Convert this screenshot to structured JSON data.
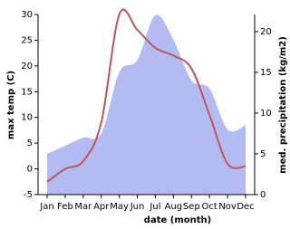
{
  "chart_data": {
    "type": "line",
    "xlabel": "date (month)",
    "ylabel": "max temp (C)",
    "y2label": "med. precipitation (kg/m2)",
    "categories": [
      "Jan",
      "Feb",
      "Mar",
      "Apr",
      "May",
      "Jun",
      "Jul",
      "Aug",
      "Sep",
      "Oct",
      "Nov",
      "Dec"
    ],
    "series": [
      {
        "name": "med. precipitation (kg/m2)",
        "kind": "area",
        "axis": "y2",
        "color": "#b3bcf2",
        "values": [
          5,
          6,
          7,
          7.5,
          15,
          16.5,
          22,
          19,
          14,
          13,
          8,
          8.5
        ]
      },
      {
        "name": "max temp (C)",
        "kind": "line",
        "color": "#c0545c",
        "values": [
          -2.5,
          0,
          1.5,
          9,
          30,
          27,
          23.5,
          22,
          19.5,
          10.5,
          1,
          0.5
        ]
      }
    ],
    "ylim": [
      -5,
      30
    ],
    "yticks": [
      -5,
      0,
      5,
      10,
      15,
      20,
      25,
      30
    ],
    "y2lim": [
      0,
      22.1
    ],
    "y2ticks": [
      0,
      5,
      10,
      15,
      20
    ]
  }
}
